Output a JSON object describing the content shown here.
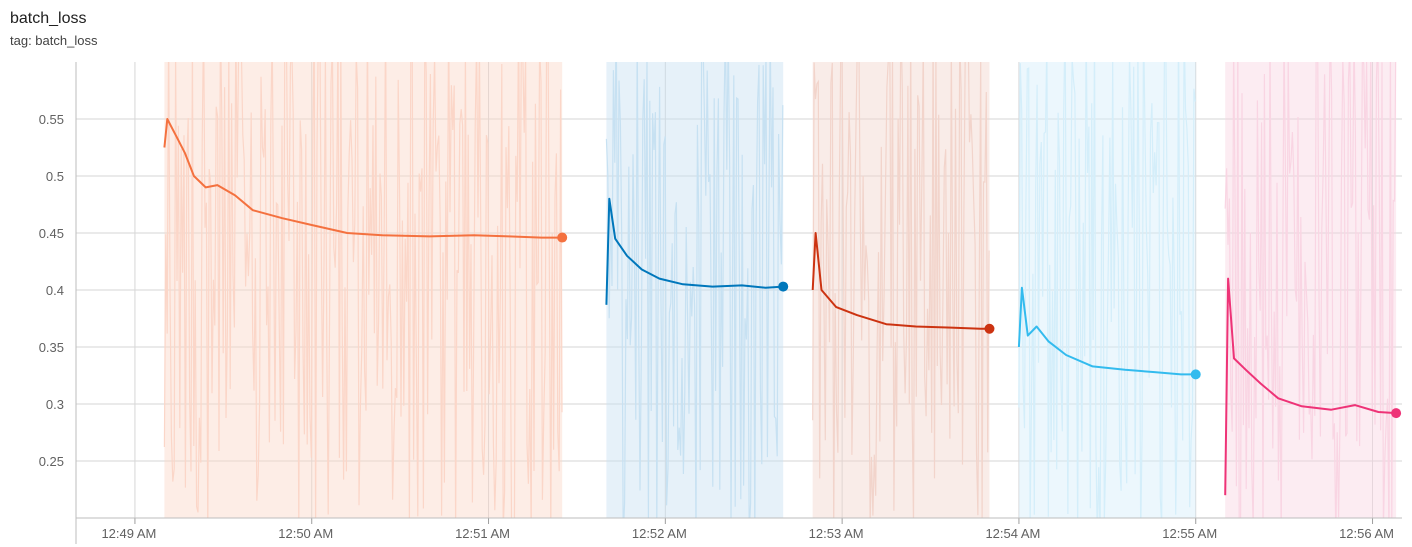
{
  "card": {
    "title": "batch_loss",
    "subtitle": "tag: batch_loss"
  },
  "chart_data": {
    "type": "line",
    "title": "batch_loss",
    "xlabel": "",
    "ylabel": "",
    "xlim": [
      "12:48:40",
      "12:56:10"
    ],
    "ylim": [
      0.2,
      0.6
    ],
    "grid": true,
    "x_ticks": [
      "12:49 AM",
      "12:50 AM",
      "12:51 AM",
      "12:52 AM",
      "12:53 AM",
      "12:54 AM",
      "12:55 AM",
      "12:56 AM"
    ],
    "y_ticks": [
      "0.25",
      "0.3",
      "0.35",
      "0.4",
      "0.45",
      "0.5",
      "0.55"
    ],
    "series": [
      {
        "color": "#f4713f",
        "raw_color": "#fbd6c8",
        "smoothed": [
          [
            "12:49:10",
            0.525
          ],
          [
            "12:49:11",
            0.55
          ],
          [
            "12:49:14",
            0.535
          ],
          [
            "12:49:17",
            0.52
          ],
          [
            "12:49:20",
            0.5
          ],
          [
            "12:49:24",
            0.49
          ],
          [
            "12:49:28",
            0.492
          ],
          [
            "12:49:34",
            0.483
          ],
          [
            "12:49:40",
            0.47
          ],
          [
            "12:49:50",
            0.463
          ],
          [
            "12:50:00",
            0.457
          ],
          [
            "12:50:12",
            0.45
          ],
          [
            "12:50:24",
            0.448
          ],
          [
            "12:50:40",
            0.447
          ],
          [
            "12:50:55",
            0.448
          ],
          [
            "12:51:07",
            0.447
          ],
          [
            "12:51:18",
            0.446
          ],
          [
            "12:51:25",
            0.446
          ]
        ],
        "raw_band": [
          0.2,
          0.6
        ]
      },
      {
        "color": "#0077bb",
        "raw_color": "#c7e1f2",
        "smoothed": [
          [
            "12:51:40",
            0.387
          ],
          [
            "12:51:41",
            0.48
          ],
          [
            "12:51:43",
            0.445
          ],
          [
            "12:51:47",
            0.43
          ],
          [
            "12:51:52",
            0.418
          ],
          [
            "12:51:58",
            0.41
          ],
          [
            "12:52:06",
            0.405
          ],
          [
            "12:52:16",
            0.403
          ],
          [
            "12:52:26",
            0.404
          ],
          [
            "12:52:34",
            0.402
          ],
          [
            "12:52:40",
            0.403
          ]
        ],
        "raw_band": [
          0.2,
          0.6
        ]
      },
      {
        "color": "#cc3311",
        "raw_color": "#f2d4cb",
        "smoothed": [
          [
            "12:52:50",
            0.4
          ],
          [
            "12:52:51",
            0.45
          ],
          [
            "12:52:53",
            0.4
          ],
          [
            "12:52:58",
            0.385
          ],
          [
            "12:53:05",
            0.378
          ],
          [
            "12:53:15",
            0.37
          ],
          [
            "12:53:25",
            0.368
          ],
          [
            "12:53:37",
            0.367
          ],
          [
            "12:53:47",
            0.366
          ],
          [
            "12:53:50",
            0.366
          ]
        ],
        "raw_band": [
          0.2,
          0.6
        ]
      },
      {
        "color": "#33bbee",
        "raw_color": "#d4eefa",
        "smoothed": [
          [
            "12:54:00",
            0.35
          ],
          [
            "12:54:01",
            0.402
          ],
          [
            "12:54:03",
            0.36
          ],
          [
            "12:54:06",
            0.368
          ],
          [
            "12:54:10",
            0.355
          ],
          [
            "12:54:16",
            0.343
          ],
          [
            "12:54:25",
            0.333
          ],
          [
            "12:54:36",
            0.33
          ],
          [
            "12:54:46",
            0.328
          ],
          [
            "12:54:55",
            0.326
          ],
          [
            "12:55:00",
            0.326
          ]
        ],
        "raw_band": [
          0.2,
          0.6
        ]
      },
      {
        "color": "#ee3377",
        "raw_color": "#f9d5e3",
        "smoothed": [
          [
            "12:55:10",
            0.22
          ],
          [
            "12:55:11",
            0.41
          ],
          [
            "12:55:13",
            0.34
          ],
          [
            "12:55:17",
            0.33
          ],
          [
            "12:55:22",
            0.318
          ],
          [
            "12:55:28",
            0.305
          ],
          [
            "12:55:36",
            0.298
          ],
          [
            "12:55:46",
            0.295
          ],
          [
            "12:55:54",
            0.299
          ],
          [
            "12:56:02",
            0.293
          ],
          [
            "12:56:08",
            0.292
          ]
        ],
        "raw_band": [
          0.2,
          0.6
        ]
      }
    ]
  }
}
